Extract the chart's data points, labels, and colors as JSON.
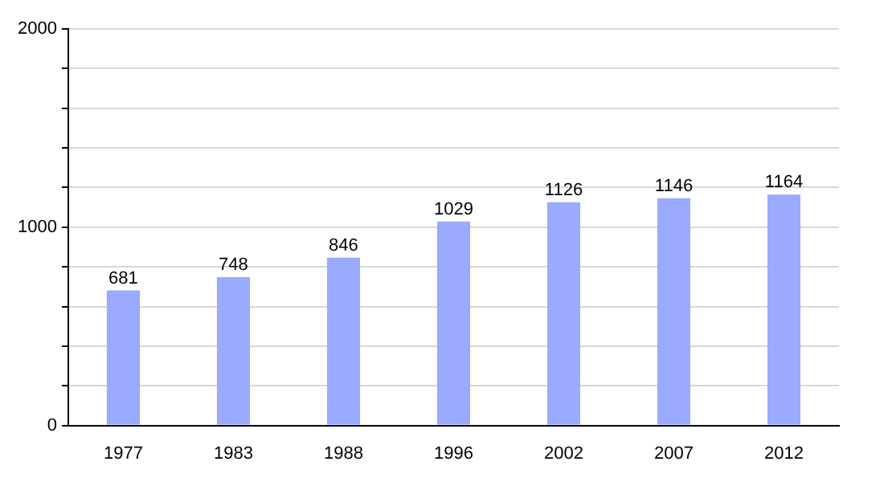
{
  "chart_data": {
    "type": "bar",
    "categories": [
      "1977",
      "1983",
      "1988",
      "1996",
      "2002",
      "2007",
      "2012"
    ],
    "values": [
      681,
      748,
      846,
      1029,
      1126,
      1146,
      1164
    ],
    "color": "#99aaff",
    "ylim": [
      0,
      2000
    ],
    "yticks": [
      0,
      {
        "value": 200,
        "label": null
      },
      {
        "value": 400,
        "label": null
      },
      {
        "value": 600,
        "label": null
      },
      {
        "value": 800,
        "label": null
      },
      1000,
      {
        "value": 1200,
        "label": null
      },
      {
        "value": 1400,
        "label": null
      },
      {
        "value": 1600,
        "label": null
      },
      {
        "value": 1800,
        "label": null
      },
      2000
    ],
    "grid": "y",
    "data_labels": true
  }
}
